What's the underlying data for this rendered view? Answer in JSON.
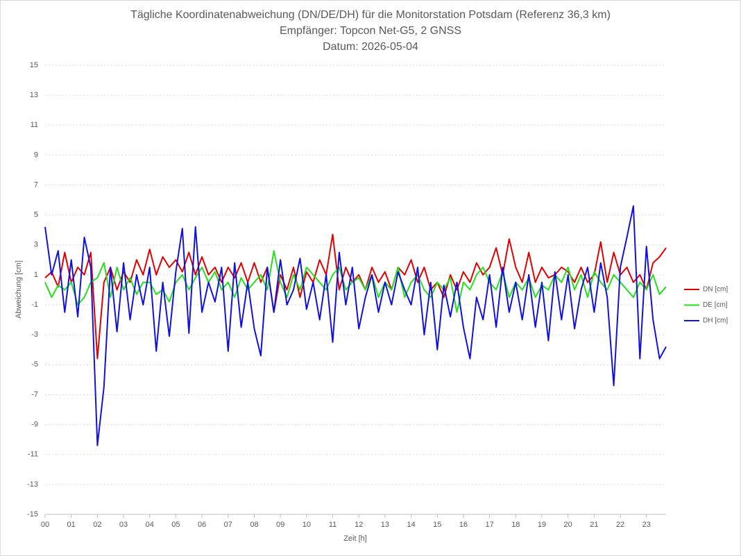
{
  "chart_data": {
    "type": "line",
    "title": "Tägliche Koordinatenabweichung (DN/DE/DH) für die Monitorstation Potsdam (Referenz 36,3 km)",
    "subtitle": "Empfänger: Topcon Net-G5, 2 GNSS",
    "date": "Datum: 2026-05-04",
    "x_label": "Zeit [h]",
    "y_label": "Abweichung [cm]",
    "grid": true,
    "legend": "right",
    "xlim": [
      0,
      23.75
    ],
    "ylim": [
      -15,
      15
    ],
    "yticks": [
      -15,
      -13,
      -11,
      -9,
      -7,
      -5,
      -3,
      -1,
      1,
      3,
      5,
      7,
      9,
      11,
      13,
      15
    ],
    "xticks": [
      {
        "value": 0,
        "label": "00"
      },
      {
        "value": 1,
        "label": "01"
      },
      {
        "value": 2,
        "label": "02"
      },
      {
        "value": 3,
        "label": "03"
      },
      {
        "value": 4,
        "label": "04"
      },
      {
        "value": 5,
        "label": "05"
      },
      {
        "value": 6,
        "label": "06"
      },
      {
        "value": 7,
        "label": "07"
      },
      {
        "value": 8,
        "label": "08"
      },
      {
        "value": 9,
        "label": "09"
      },
      {
        "value": 10,
        "label": "10"
      },
      {
        "value": 11,
        "label": "11"
      },
      {
        "value": 12,
        "label": "12"
      },
      {
        "value": 13,
        "label": "13"
      },
      {
        "value": 14,
        "label": "14"
      },
      {
        "value": 15,
        "label": "15"
      },
      {
        "value": 16,
        "label": "16"
      },
      {
        "value": 17,
        "label": "17"
      },
      {
        "value": 18,
        "label": "18"
      },
      {
        "value": 19,
        "label": "19"
      },
      {
        "value": 20,
        "label": "20"
      },
      {
        "value": 21,
        "label": "21"
      },
      {
        "value": 22,
        "label": "22"
      },
      {
        "value": 23,
        "label": "23"
      }
    ],
    "x": [
      0,
      0.25,
      0.5,
      0.75,
      1,
      1.25,
      1.5,
      1.75,
      2,
      2.25,
      2.5,
      2.75,
      3,
      3.25,
      3.5,
      3.75,
      4,
      4.25,
      4.5,
      4.75,
      5,
      5.25,
      5.5,
      5.75,
      6,
      6.25,
      6.5,
      6.75,
      7,
      7.25,
      7.5,
      7.75,
      8,
      8.25,
      8.5,
      8.75,
      9,
      9.25,
      9.5,
      9.75,
      10,
      10.25,
      10.5,
      10.75,
      11,
      11.25,
      11.5,
      11.75,
      12,
      12.25,
      12.5,
      12.75,
      13,
      13.25,
      13.5,
      13.75,
      14,
      14.25,
      14.5,
      14.75,
      15,
      15.25,
      15.5,
      15.75,
      16,
      16.25,
      16.5,
      16.75,
      17,
      17.25,
      17.5,
      17.75,
      18,
      18.25,
      18.5,
      18.75,
      19,
      19.25,
      19.5,
      19.75,
      20,
      20.25,
      20.5,
      20.75,
      21,
      21.25,
      21.5,
      21.75,
      22,
      22.25,
      22.5,
      22.75,
      23,
      23.25,
      23.5,
      23.75
    ],
    "series": [
      {
        "name": "DN [cm]",
        "color": "#e00000",
        "values": [
          0.8,
          1.2,
          0.2,
          2.5,
          0.5,
          1.5,
          1.0,
          2.5,
          -4.6,
          0.5,
          1.5,
          0.0,
          1.2,
          0.5,
          2.0,
          1.0,
          2.7,
          1.0,
          2.2,
          1.5,
          2.0,
          1.2,
          2.5,
          1.0,
          2.2,
          1.0,
          1.5,
          0.5,
          1.5,
          0.8,
          1.8,
          0.5,
          1.8,
          0.5,
          1.5,
          -1.5,
          1.0,
          0.0,
          1.5,
          -0.5,
          1.2,
          0.5,
          2.0,
          1.0,
          3.7,
          0.0,
          1.5,
          0.5,
          1.0,
          0.0,
          1.5,
          0.5,
          1.2,
          0.0,
          1.5,
          1.0,
          2.0,
          0.5,
          1.5,
          0.0,
          0.5,
          -0.5,
          1.0,
          0.0,
          1.2,
          0.5,
          1.8,
          1.0,
          1.5,
          2.8,
          1.0,
          3.4,
          1.5,
          0.5,
          2.5,
          0.5,
          1.5,
          0.8,
          1.0,
          1.5,
          1.2,
          0.5,
          1.5,
          0.5,
          1.0,
          3.2,
          0.5,
          2.5,
          1.0,
          1.5,
          0.5,
          1.0,
          0.0,
          1.8,
          2.2,
          2.8
        ]
      },
      {
        "name": "DE [cm]",
        "color": "#22e01a",
        "values": [
          0.5,
          -0.5,
          0.3,
          0.0,
          0.5,
          -1.0,
          -0.5,
          0.5,
          0.8,
          1.8,
          -0.5,
          1.5,
          0.0,
          0.8,
          -0.3,
          0.5,
          0.5,
          -0.3,
          0.0,
          -0.8,
          0.5,
          1.0,
          0.0,
          0.8,
          1.5,
          0.5,
          1.2,
          0.0,
          0.5,
          -0.5,
          0.8,
          0.0,
          0.5,
          1.0,
          0.0,
          2.6,
          0.5,
          -0.5,
          1.0,
          0.0,
          1.5,
          1.0,
          0.5,
          0.0,
          1.0,
          1.5,
          0.0,
          0.5,
          0.8,
          0.0,
          1.0,
          -0.5,
          0.5,
          0.0,
          1.5,
          -0.5,
          0.5,
          1.0,
          0.0,
          -0.5,
          0.5,
          0.0,
          0.8,
          -1.5,
          0.5,
          0.0,
          1.0,
          1.5,
          0.5,
          0.0,
          1.2,
          -0.5,
          0.5,
          0.0,
          0.8,
          -0.5,
          0.3,
          0.0,
          1.0,
          0.5,
          1.5,
          0.0,
          1.0,
          -0.5,
          1.2,
          0.5,
          0.0,
          1.0,
          0.5,
          0.0,
          -0.5,
          0.5,
          0.0,
          1.0,
          -0.3,
          0.2
        ]
      },
      {
        "name": "DH [cm]",
        "color": "#1010e0",
        "values": [
          4.2,
          1.0,
          2.6,
          -1.5,
          2.0,
          -1.8,
          3.5,
          1.5,
          -10.4,
          -6.5,
          1.5,
          -2.8,
          1.8,
          -2.0,
          1.0,
          -1.0,
          1.5,
          -4.1,
          0.5,
          -3.1,
          1.2,
          4.1,
          -2.9,
          4.2,
          -1.5,
          0.5,
          -0.8,
          1.5,
          -4.1,
          1.8,
          -2.5,
          0.5,
          -2.6,
          -4.4,
          1.5,
          -1.5,
          2.0,
          -1.0,
          0.0,
          2.1,
          -1.3,
          0.5,
          -2.0,
          1.0,
          -3.5,
          2.5,
          -1.0,
          1.5,
          -2.6,
          -0.5,
          1.0,
          -1.5,
          0.5,
          -1.0,
          1.2,
          0.0,
          -1.0,
          1.5,
          -3.0,
          0.5,
          -4.0,
          0.3,
          -1.8,
          0.5,
          -2.5,
          -4.6,
          -0.5,
          -2.0,
          1.0,
          -2.5,
          1.5,
          -1.5,
          0.5,
          -2.0,
          1.0,
          -2.5,
          0.5,
          -3.4,
          1.2,
          -2.0,
          1.0,
          -2.6,
          0.0,
          1.5,
          -1.5,
          1.8,
          -0.5,
          -6.4,
          1.5,
          3.5,
          5.6,
          -4.6,
          2.9,
          -2.0,
          -4.6,
          -3.8
        ]
      }
    ]
  }
}
